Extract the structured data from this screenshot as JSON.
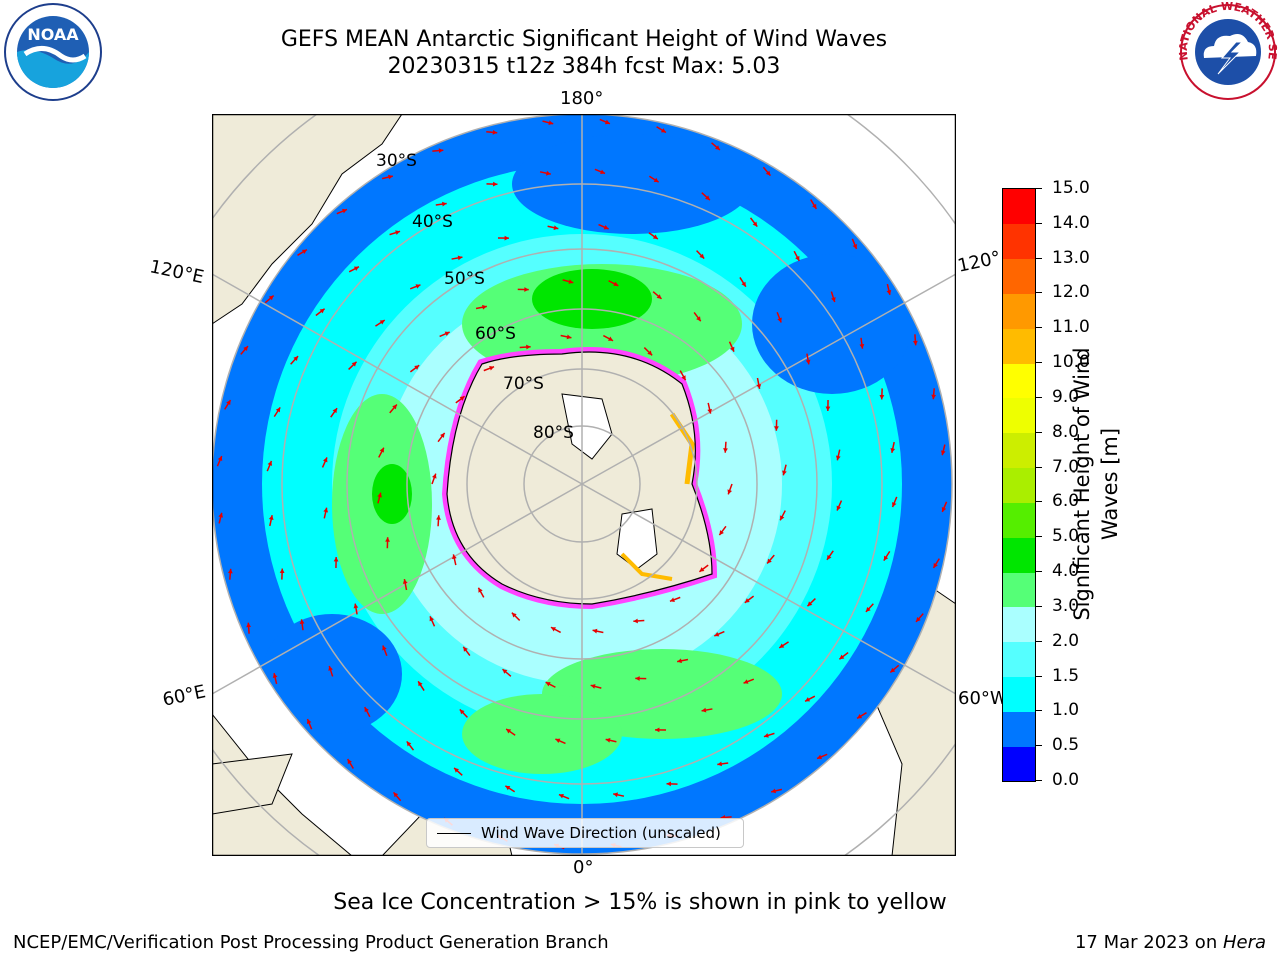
{
  "header": {
    "title_line1": "GEFS MEAN Antarctic Significant Height of Wind Waves",
    "title_line2": "20230315 t12z 384h fcst   Max: 5.03"
  },
  "logos": {
    "left_icon": "noaa-logo-icon",
    "left_text": "NOAA",
    "right_icon": "national-weather-service-logo-icon",
    "right_text": "NATIONAL WEATHER SERVICE"
  },
  "map": {
    "projection": "south polar stereographic",
    "longitude_labels": {
      "top": "180°",
      "bottom": "0°",
      "left_upper": "120°E",
      "left_lower": "60°E",
      "right_upper": "120°",
      "right_lower": "60°W"
    },
    "latitude_labels": [
      "30°S",
      "40°S",
      "50°S",
      "60°S",
      "70°S",
      "80°S"
    ],
    "legend_entry": "Wind Wave Direction (unscaled)",
    "colors": {
      "land": "#efebd9",
      "antarctica": "#efebd9",
      "grid": "#b0b0b0",
      "arrow": "#e60000"
    }
  },
  "colorbar": {
    "title": "Significant Height of Wind Waves [m]",
    "tick_labels": [
      "0.0",
      "0.5",
      "1.0",
      "1.5",
      "2.0",
      "3.0",
      "4.0",
      "5.0",
      "6.0",
      "7.0",
      "8.0",
      "9.0",
      "10.0",
      "11.0",
      "12.0",
      "13.0",
      "14.0",
      "15.0"
    ],
    "colors": [
      "#0000ff",
      "#0077ff",
      "#00ffff",
      "#55ffff",
      "#aaffff",
      "#55ff77",
      "#00e600",
      "#55ee00",
      "#aaee00",
      "#ccee00",
      "#eeff00",
      "#ffff00",
      "#ffbb00",
      "#ff9900",
      "#ff6600",
      "#ff3300",
      "#ff0000"
    ]
  },
  "note": "Sea Ice Concentration > 15% is shown in pink to yellow",
  "footer": {
    "left": "NCEP/EMC/Verification Post Processing Product Generation Branch",
    "right_prefix": "17 Mar 2023 on ",
    "right_host": "Hera"
  }
}
